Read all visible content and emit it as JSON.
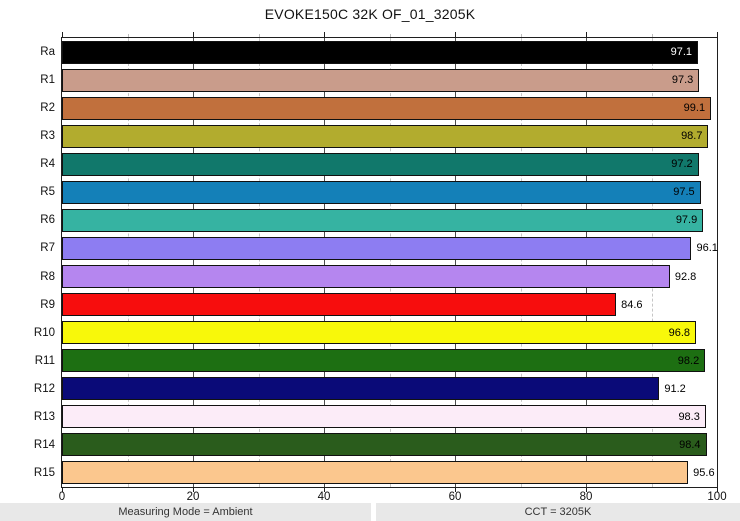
{
  "title": "EVOKE150C 32K OF_01_3205K",
  "footer": {
    "left_label": "Measuring Mode = Ambient",
    "right_label": "CCT = 3205K"
  },
  "styles": {
    "plot_border_color": "#1f1f1f",
    "grid_major_color": "#4d4d4d",
    "grid_minor_color": "#c6c6c6",
    "footer_bg": "#e8e8e8",
    "bar_border_color": "#111111"
  },
  "chart_data": {
    "type": "bar",
    "orientation": "horizontal",
    "title": "EVOKE150C 32K OF_01_3205K",
    "xlabel": "",
    "ylabel": "",
    "xlim": [
      0,
      100
    ],
    "x_major_ticks": [
      0,
      20,
      40,
      60,
      80,
      100
    ],
    "x_minor_ticks": [
      10,
      30,
      50,
      70,
      90
    ],
    "grid": {
      "vertical_major": "solid",
      "vertical_minor": "dashed",
      "horizontal": "off"
    },
    "legend": "none",
    "categories": [
      "Ra",
      "R1",
      "R2",
      "R3",
      "R4",
      "R5",
      "R6",
      "R7",
      "R8",
      "R9",
      "R10",
      "R11",
      "R12",
      "R13",
      "R14",
      "R15"
    ],
    "values": [
      97.1,
      97.3,
      99.1,
      98.7,
      97.2,
      97.5,
      97.9,
      96.1,
      92.8,
      84.6,
      96.8,
      98.2,
      91.2,
      98.3,
      98.4,
      95.6
    ],
    "bars": [
      {
        "category": "Ra",
        "value": 97.1,
        "label": "97.1",
        "color": "#000000",
        "label_inside": true,
        "label_color": "#ffffff"
      },
      {
        "category": "R1",
        "value": 97.3,
        "label": "97.3",
        "color": "#c99c8b",
        "label_inside": true,
        "label_color": "#000000"
      },
      {
        "category": "R2",
        "value": 99.1,
        "label": "99.1",
        "color": "#c1703d",
        "label_inside": true,
        "label_color": "#000000"
      },
      {
        "category": "R3",
        "value": 98.7,
        "label": "98.7",
        "color": "#b2ac2e",
        "label_inside": true,
        "label_color": "#000000"
      },
      {
        "category": "R4",
        "value": 97.2,
        "label": "97.2",
        "color": "#11786b",
        "label_inside": true,
        "label_color": "#000000"
      },
      {
        "category": "R5",
        "value": 97.5,
        "label": "97.5",
        "color": "#1480b8",
        "label_inside": true,
        "label_color": "#000000"
      },
      {
        "category": "R6",
        "value": 97.9,
        "label": "97.9",
        "color": "#36b3a2",
        "label_inside": true,
        "label_color": "#000000"
      },
      {
        "category": "R7",
        "value": 96.1,
        "label": "96.1",
        "color": "#8d7df2",
        "label_inside": false,
        "label_color": "#000000"
      },
      {
        "category": "R8",
        "value": 92.8,
        "label": "92.8",
        "color": "#b586ef",
        "label_inside": false,
        "label_color": "#000000"
      },
      {
        "category": "R9",
        "value": 84.6,
        "label": "84.6",
        "color": "#f70d0d",
        "label_inside": false,
        "label_color": "#000000"
      },
      {
        "category": "R10",
        "value": 96.8,
        "label": "96.8",
        "color": "#f8f80a",
        "label_inside": true,
        "label_color": "#000000"
      },
      {
        "category": "R11",
        "value": 98.2,
        "label": "98.2",
        "color": "#1d6f12",
        "label_inside": true,
        "label_color": "#000000"
      },
      {
        "category": "R12",
        "value": 91.2,
        "label": "91.2",
        "color": "#0a0a78",
        "label_inside": false,
        "label_color": "#000000"
      },
      {
        "category": "R13",
        "value": 98.3,
        "label": "98.3",
        "color": "#fcecf8",
        "label_inside": true,
        "label_color": "#000000"
      },
      {
        "category": "R14",
        "value": 98.4,
        "label": "98.4",
        "color": "#2a5c1c",
        "label_inside": true,
        "label_color": "#000000"
      },
      {
        "category": "R15",
        "value": 95.6,
        "label": "95.6",
        "color": "#fbc78e",
        "label_inside": false,
        "label_color": "#000000"
      }
    ]
  }
}
